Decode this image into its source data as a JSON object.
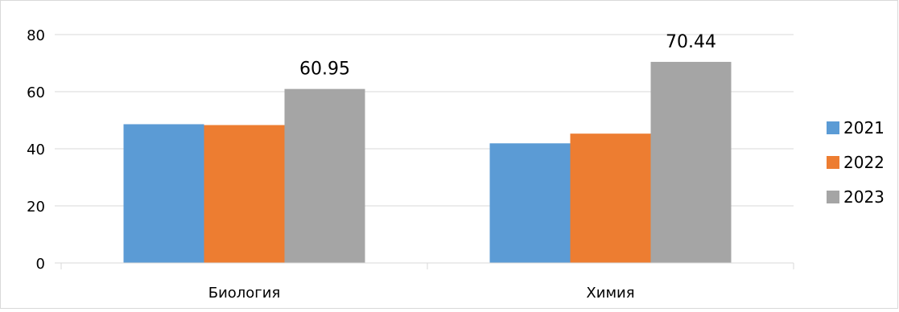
{
  "chart_data": {
    "type": "bar",
    "categories": [
      "Биология",
      "Химия"
    ],
    "series": [
      {
        "name": "2021",
        "values": [
          48.6,
          41.9
        ],
        "color": "#5b9bd5"
      },
      {
        "name": "2022",
        "values": [
          48.3,
          45.3
        ],
        "color": "#ed7d31"
      },
      {
        "name": "2023",
        "values": [
          60.95,
          70.44
        ],
        "color": "#a5a5a5"
      }
    ],
    "data_labels": [
      {
        "series": "2023",
        "category": "Биология",
        "text": "60.95"
      },
      {
        "series": "2023",
        "category": "Химия",
        "text": "70.44"
      }
    ],
    "y_ticks": [
      "0",
      "20",
      "40",
      "60",
      "80"
    ],
    "ylim": [
      0,
      80
    ],
    "title": "",
    "xlabel": "",
    "ylabel": "",
    "grid": true,
    "legend_position": "right"
  }
}
